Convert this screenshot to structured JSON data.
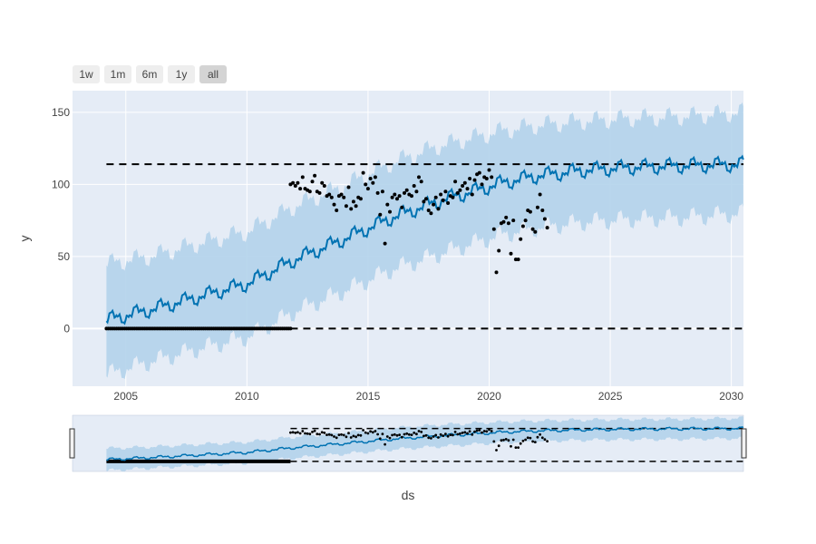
{
  "rangeselector": {
    "buttons": [
      {
        "label": "1w",
        "active": false
      },
      {
        "label": "1m",
        "active": false
      },
      {
        "label": "6m",
        "active": false
      },
      {
        "label": "1y",
        "active": false
      },
      {
        "label": "all",
        "active": true
      }
    ]
  },
  "chart_data": {
    "type": "line",
    "xlabel": "ds",
    "ylabel": "y",
    "xlim": [
      2002.8,
      2030.5
    ],
    "ylim": [
      -40,
      165
    ],
    "x_ticks": [
      2005,
      2010,
      2015,
      2020,
      2025,
      2030
    ],
    "y_ticks": [
      0,
      50,
      100,
      150
    ],
    "grid": true,
    "colors": {
      "plot_bg": "#e5ecf6",
      "grid": "#ffffff",
      "forecast_line": "#0072b2",
      "uncertainty_band": "#b3d3eb",
      "observed_points": "#000000",
      "capacity_lines": "#000000"
    },
    "capacity": {
      "floor": 0,
      "cap": 114
    },
    "forecast_knots": {
      "x": [
        2004.2,
        2006,
        2008,
        2010,
        2012,
        2014,
        2016,
        2018,
        2019.5,
        2020.5,
        2022,
        2024,
        2026,
        2028,
        2030.5
      ],
      "yhat": [
        6,
        13,
        22,
        31,
        48,
        62,
        77,
        89,
        96,
        101,
        106,
        110,
        112,
        113,
        114
      ],
      "lower": [
        -32,
        -23,
        -14,
        -6,
        12,
        26,
        41,
        52,
        60,
        65,
        70,
        74,
        76,
        77,
        80
      ],
      "upper": [
        45,
        50,
        59,
        67,
        85,
        99,
        115,
        127,
        133,
        137,
        141,
        144,
        146,
        147,
        150
      ]
    },
    "forecast_seasonal_amplitude": 3.5,
    "observed": {
      "floor_series": {
        "x_start": 2004.2,
        "x_end": 2011.8,
        "y": 0,
        "count": 92
      },
      "points": [
        {
          "x": 2011.8,
          "y": 100
        },
        {
          "x": 2011.9,
          "y": 101
        },
        {
          "x": 2012.0,
          "y": 99
        },
        {
          "x": 2012.1,
          "y": 101
        },
        {
          "x": 2012.2,
          "y": 97
        },
        {
          "x": 2012.3,
          "y": 105
        },
        {
          "x": 2012.4,
          "y": 97
        },
        {
          "x": 2012.5,
          "y": 96
        },
        {
          "x": 2012.6,
          "y": 95
        },
        {
          "x": 2012.7,
          "y": 102
        },
        {
          "x": 2012.8,
          "y": 106
        },
        {
          "x": 2012.9,
          "y": 95
        },
        {
          "x": 2013.0,
          "y": 94
        },
        {
          "x": 2013.1,
          "y": 101
        },
        {
          "x": 2013.2,
          "y": 99
        },
        {
          "x": 2013.3,
          "y": 92
        },
        {
          "x": 2013.4,
          "y": 93
        },
        {
          "x": 2013.5,
          "y": 91
        },
        {
          "x": 2013.6,
          "y": 86
        },
        {
          "x": 2013.7,
          "y": 82
        },
        {
          "x": 2013.8,
          "y": 92
        },
        {
          "x": 2013.9,
          "y": 93
        },
        {
          "x": 2014.0,
          "y": 91
        },
        {
          "x": 2014.1,
          "y": 85
        },
        {
          "x": 2014.2,
          "y": 98
        },
        {
          "x": 2014.3,
          "y": 83
        },
        {
          "x": 2014.4,
          "y": 88
        },
        {
          "x": 2014.5,
          "y": 85
        },
        {
          "x": 2014.6,
          "y": 91
        },
        {
          "x": 2014.7,
          "y": 90
        },
        {
          "x": 2014.8,
          "y": 108
        },
        {
          "x": 2014.9,
          "y": 100
        },
        {
          "x": 2015.0,
          "y": 97
        },
        {
          "x": 2015.1,
          "y": 104
        },
        {
          "x": 2015.2,
          "y": 101
        },
        {
          "x": 2015.3,
          "y": 105
        },
        {
          "x": 2015.4,
          "y": 94
        },
        {
          "x": 2015.5,
          "y": 79
        },
        {
          "x": 2015.6,
          "y": 95
        },
        {
          "x": 2015.7,
          "y": 59
        },
        {
          "x": 2015.8,
          "y": 86
        },
        {
          "x": 2015.9,
          "y": 81
        },
        {
          "x": 2016.0,
          "y": 91
        },
        {
          "x": 2016.1,
          "y": 93
        },
        {
          "x": 2016.2,
          "y": 90
        },
        {
          "x": 2016.3,
          "y": 92
        },
        {
          "x": 2016.4,
          "y": 84
        },
        {
          "x": 2016.5,
          "y": 94
        },
        {
          "x": 2016.6,
          "y": 96
        },
        {
          "x": 2016.7,
          "y": 93
        },
        {
          "x": 2016.8,
          "y": 92
        },
        {
          "x": 2016.9,
          "y": 99
        },
        {
          "x": 2017.0,
          "y": 95
        },
        {
          "x": 2017.1,
          "y": 105
        },
        {
          "x": 2017.2,
          "y": 102
        },
        {
          "x": 2017.3,
          "y": 88
        },
        {
          "x": 2017.4,
          "y": 90
        },
        {
          "x": 2017.5,
          "y": 82
        },
        {
          "x": 2017.6,
          "y": 80
        },
        {
          "x": 2017.7,
          "y": 86
        },
        {
          "x": 2017.8,
          "y": 91
        },
        {
          "x": 2017.9,
          "y": 83
        },
        {
          "x": 2018.0,
          "y": 93
        },
        {
          "x": 2018.1,
          "y": 89
        },
        {
          "x": 2018.2,
          "y": 95
        },
        {
          "x": 2018.3,
          "y": 87
        },
        {
          "x": 2018.4,
          "y": 92
        },
        {
          "x": 2018.5,
          "y": 91
        },
        {
          "x": 2018.6,
          "y": 102
        },
        {
          "x": 2018.7,
          "y": 94
        },
        {
          "x": 2018.8,
          "y": 96
        },
        {
          "x": 2018.9,
          "y": 99
        },
        {
          "x": 2019.0,
          "y": 101
        },
        {
          "x": 2019.1,
          "y": 97
        },
        {
          "x": 2019.2,
          "y": 104
        },
        {
          "x": 2019.3,
          "y": 93
        },
        {
          "x": 2019.4,
          "y": 103
        },
        {
          "x": 2019.5,
          "y": 107
        },
        {
          "x": 2019.6,
          "y": 108
        },
        {
          "x": 2019.7,
          "y": 100
        },
        {
          "x": 2019.8,
          "y": 105
        },
        {
          "x": 2019.9,
          "y": 104
        },
        {
          "x": 2020.0,
          "y": 110
        },
        {
          "x": 2020.1,
          "y": 105
        },
        {
          "x": 2020.2,
          "y": 69
        },
        {
          "x": 2020.3,
          "y": 39
        },
        {
          "x": 2020.4,
          "y": 54
        },
        {
          "x": 2020.5,
          "y": 73
        },
        {
          "x": 2020.6,
          "y": 74
        },
        {
          "x": 2020.7,
          "y": 77
        },
        {
          "x": 2020.8,
          "y": 73
        },
        {
          "x": 2020.9,
          "y": 52
        },
        {
          "x": 2021.0,
          "y": 75
        },
        {
          "x": 2021.1,
          "y": 48
        },
        {
          "x": 2021.2,
          "y": 48
        },
        {
          "x": 2021.3,
          "y": 62
        },
        {
          "x": 2021.4,
          "y": 71
        },
        {
          "x": 2021.5,
          "y": 75
        },
        {
          "x": 2021.6,
          "y": 82
        },
        {
          "x": 2021.7,
          "y": 81
        },
        {
          "x": 2021.8,
          "y": 69
        },
        {
          "x": 2021.9,
          "y": 67
        },
        {
          "x": 2022.0,
          "y": 84
        },
        {
          "x": 2022.1,
          "y": 93
        },
        {
          "x": 2022.2,
          "y": 82
        },
        {
          "x": 2022.3,
          "y": 76
        },
        {
          "x": 2022.4,
          "y": 70
        }
      ]
    }
  }
}
